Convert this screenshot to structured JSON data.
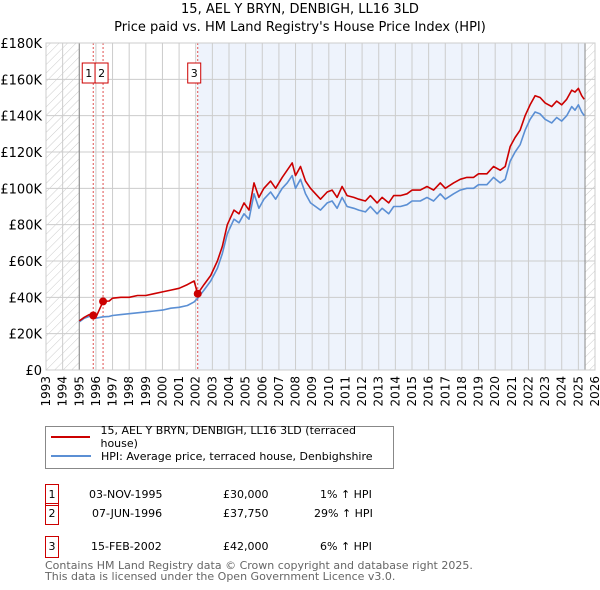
{
  "title": "15, AEL Y BRYN, DENBIGH, LL16 3LD",
  "subtitle": "Price paid vs. HM Land Registry's House Price Index (HPI)",
  "chart_data": {
    "type": "line",
    "title": "15, AEL Y BRYN, DENBIGH, LL16 3LD",
    "subtitle": "Price paid vs. HM Land Registry's House Price Index (HPI)",
    "xlim": [
      1993,
      2026
    ],
    "ylim": [
      0,
      180000
    ],
    "x_ticks": [
      "1993",
      "1994",
      "1995",
      "1996",
      "1997",
      "1998",
      "1999",
      "2000",
      "2001",
      "2002",
      "2003",
      "2004",
      "2005",
      "2006",
      "2007",
      "2008",
      "2009",
      "2010",
      "2011",
      "2012",
      "2013",
      "2014",
      "2015",
      "2016",
      "2017",
      "2018",
      "2019",
      "2020",
      "2021",
      "2022",
      "2023",
      "2024",
      "2025",
      "2026"
    ],
    "y_ticks": [
      {
        "v": 0,
        "label": "£0"
      },
      {
        "v": 20000,
        "label": "£20K"
      },
      {
        "v": 40000,
        "label": "£40K"
      },
      {
        "v": 60000,
        "label": "£60K"
      },
      {
        "v": 80000,
        "label": "£80K"
      },
      {
        "v": 100000,
        "label": "£100K"
      },
      {
        "v": 120000,
        "label": "£120K"
      },
      {
        "v": 140000,
        "label": "£140K"
      },
      {
        "v": 160000,
        "label": "£160K"
      },
      {
        "v": 180000,
        "label": "£180K"
      }
    ],
    "grid": true,
    "hatched_before": 1995,
    "hatched_after": 2025.4,
    "shaded_from": 2002.12,
    "colors": {
      "property": "#cc0000",
      "hpi": "#5b8fd4"
    },
    "series": [
      {
        "name": "15, AEL Y BRYN, DENBIGH, LL16 3LD (terraced house)",
        "color": "#cc0000",
        "points": [
          [
            1995.0,
            27000
          ],
          [
            1995.3,
            29000
          ],
          [
            1995.6,
            30500
          ],
          [
            1995.84,
            30000
          ],
          [
            1996.0,
            29000
          ],
          [
            1996.43,
            37750
          ],
          [
            1996.8,
            38000
          ],
          [
            1997.0,
            39500
          ],
          [
            1997.5,
            40000
          ],
          [
            1998.0,
            40000
          ],
          [
            1998.5,
            41000
          ],
          [
            1999.0,
            41000
          ],
          [
            1999.5,
            42000
          ],
          [
            2000.0,
            43000
          ],
          [
            2000.5,
            44000
          ],
          [
            2001.0,
            45000
          ],
          [
            2001.5,
            47000
          ],
          [
            2001.9,
            49000
          ],
          [
            2002.12,
            42000
          ],
          [
            2002.5,
            47000
          ],
          [
            2002.9,
            52000
          ],
          [
            2003.3,
            60000
          ],
          [
            2003.6,
            68000
          ],
          [
            2003.9,
            80000
          ],
          [
            2004.3,
            88000
          ],
          [
            2004.6,
            86000
          ],
          [
            2004.9,
            92000
          ],
          [
            2005.2,
            88000
          ],
          [
            2005.5,
            103000
          ],
          [
            2005.8,
            95000
          ],
          [
            2006.1,
            100000
          ],
          [
            2006.5,
            104000
          ],
          [
            2006.8,
            100000
          ],
          [
            2007.2,
            106000
          ],
          [
            2007.5,
            110000
          ],
          [
            2007.8,
            114000
          ],
          [
            2008.0,
            107000
          ],
          [
            2008.3,
            112000
          ],
          [
            2008.6,
            104000
          ],
          [
            2008.9,
            100000
          ],
          [
            2009.2,
            97000
          ],
          [
            2009.5,
            94000
          ],
          [
            2009.9,
            98000
          ],
          [
            2010.2,
            99000
          ],
          [
            2010.5,
            95000
          ],
          [
            2010.8,
            101000
          ],
          [
            2011.1,
            96000
          ],
          [
            2011.5,
            95000
          ],
          [
            2011.8,
            94000
          ],
          [
            2012.2,
            93000
          ],
          [
            2012.5,
            96000
          ],
          [
            2012.9,
            92000
          ],
          [
            2013.2,
            95000
          ],
          [
            2013.6,
            92000
          ],
          [
            2013.9,
            96000
          ],
          [
            2014.3,
            96000
          ],
          [
            2014.7,
            97000
          ],
          [
            2015.0,
            99000
          ],
          [
            2015.5,
            99000
          ],
          [
            2015.9,
            101000
          ],
          [
            2016.3,
            99000
          ],
          [
            2016.7,
            103000
          ],
          [
            2017.0,
            100000
          ],
          [
            2017.5,
            103000
          ],
          [
            2017.9,
            105000
          ],
          [
            2018.3,
            106000
          ],
          [
            2018.7,
            106000
          ],
          [
            2019.0,
            108000
          ],
          [
            2019.5,
            108000
          ],
          [
            2019.9,
            112000
          ],
          [
            2020.3,
            110000
          ],
          [
            2020.6,
            112000
          ],
          [
            2020.9,
            123000
          ],
          [
            2021.2,
            128000
          ],
          [
            2021.5,
            132000
          ],
          [
            2021.8,
            140000
          ],
          [
            2022.1,
            146000
          ],
          [
            2022.4,
            151000
          ],
          [
            2022.7,
            150000
          ],
          [
            2023.0,
            147000
          ],
          [
            2023.4,
            145000
          ],
          [
            2023.7,
            148000
          ],
          [
            2024.0,
            146000
          ],
          [
            2024.3,
            149000
          ],
          [
            2024.6,
            154000
          ],
          [
            2024.8,
            153000
          ],
          [
            2025.0,
            155000
          ],
          [
            2025.2,
            151000
          ],
          [
            2025.35,
            149000
          ]
        ]
      },
      {
        "name": "HPI: Average price, terraced house, Denbighshire",
        "color": "#5b8fd4",
        "points": [
          [
            1995.0,
            26500
          ],
          [
            1995.3,
            28500
          ],
          [
            1995.6,
            29500
          ],
          [
            1995.84,
            29500
          ],
          [
            1996.0,
            28500
          ],
          [
            1996.43,
            29300
          ],
          [
            1996.8,
            29500
          ],
          [
            1997.0,
            30000
          ],
          [
            1997.5,
            30500
          ],
          [
            1998.0,
            31000
          ],
          [
            1998.5,
            31500
          ],
          [
            1999.0,
            32000
          ],
          [
            1999.5,
            32500
          ],
          [
            2000.0,
            33000
          ],
          [
            2000.5,
            34000
          ],
          [
            2001.0,
            34500
          ],
          [
            2001.5,
            35500
          ],
          [
            2001.9,
            37500
          ],
          [
            2002.12,
            39500
          ],
          [
            2002.5,
            44000
          ],
          [
            2002.9,
            49000
          ],
          [
            2003.3,
            56000
          ],
          [
            2003.6,
            64000
          ],
          [
            2003.9,
            75000
          ],
          [
            2004.3,
            83000
          ],
          [
            2004.6,
            81000
          ],
          [
            2004.9,
            86000
          ],
          [
            2005.2,
            83000
          ],
          [
            2005.5,
            97000
          ],
          [
            2005.8,
            89000
          ],
          [
            2006.1,
            94000
          ],
          [
            2006.5,
            98000
          ],
          [
            2006.8,
            94000
          ],
          [
            2007.2,
            100000
          ],
          [
            2007.5,
            103000
          ],
          [
            2007.8,
            107000
          ],
          [
            2008.0,
            100000
          ],
          [
            2008.3,
            105000
          ],
          [
            2008.6,
            97000
          ],
          [
            2008.9,
            92000
          ],
          [
            2009.2,
            90000
          ],
          [
            2009.5,
            88000
          ],
          [
            2009.9,
            92000
          ],
          [
            2010.2,
            93000
          ],
          [
            2010.5,
            89000
          ],
          [
            2010.8,
            95000
          ],
          [
            2011.1,
            90000
          ],
          [
            2011.5,
            89000
          ],
          [
            2011.8,
            88000
          ],
          [
            2012.2,
            87000
          ],
          [
            2012.5,
            90000
          ],
          [
            2012.9,
            86000
          ],
          [
            2013.2,
            89000
          ],
          [
            2013.6,
            86000
          ],
          [
            2013.9,
            90000
          ],
          [
            2014.3,
            90000
          ],
          [
            2014.7,
            91000
          ],
          [
            2015.0,
            93000
          ],
          [
            2015.5,
            93000
          ],
          [
            2015.9,
            95000
          ],
          [
            2016.3,
            93000
          ],
          [
            2016.7,
            97000
          ],
          [
            2017.0,
            94000
          ],
          [
            2017.5,
            97000
          ],
          [
            2017.9,
            99000
          ],
          [
            2018.3,
            100000
          ],
          [
            2018.7,
            100000
          ],
          [
            2019.0,
            102000
          ],
          [
            2019.5,
            102000
          ],
          [
            2019.9,
            106000
          ],
          [
            2020.3,
            103000
          ],
          [
            2020.6,
            105000
          ],
          [
            2020.9,
            115000
          ],
          [
            2021.2,
            120000
          ],
          [
            2021.5,
            124000
          ],
          [
            2021.8,
            132000
          ],
          [
            2022.1,
            138000
          ],
          [
            2022.4,
            142000
          ],
          [
            2022.7,
            141000
          ],
          [
            2023.0,
            138000
          ],
          [
            2023.4,
            136000
          ],
          [
            2023.7,
            139000
          ],
          [
            2024.0,
            137000
          ],
          [
            2024.3,
            140000
          ],
          [
            2024.6,
            145000
          ],
          [
            2024.8,
            143000
          ],
          [
            2025.0,
            146000
          ],
          [
            2025.2,
            142000
          ],
          [
            2025.35,
            140000
          ]
        ]
      }
    ],
    "sales": [
      {
        "num": "1",
        "x": 1995.84,
        "price": 30000
      },
      {
        "num": "2",
        "x": 1996.43,
        "price": 37750
      },
      {
        "num": "3",
        "x": 2002.12,
        "price": 42000
      }
    ]
  },
  "legend": {
    "property": "15, AEL Y BRYN, DENBIGH, LL16 3LD (terraced house)",
    "hpi": "HPI: Average price, terraced house, Denbighshire"
  },
  "transactions": [
    {
      "num": "1",
      "date": "03-NOV-1995",
      "price": "£30,000",
      "hpi": "1% ↑ HPI"
    },
    {
      "num": "2",
      "date": "07-JUN-1996",
      "price": "£37,750",
      "hpi": "29% ↑ HPI"
    },
    {
      "num": "3",
      "date": "15-FEB-2002",
      "price": "£42,000",
      "hpi": "6% ↑ HPI"
    }
  ],
  "footer": {
    "line1": "Contains HM Land Registry data © Crown copyright and database right 2025.",
    "line2": "This data is licensed under the Open Government Licence v3.0."
  }
}
